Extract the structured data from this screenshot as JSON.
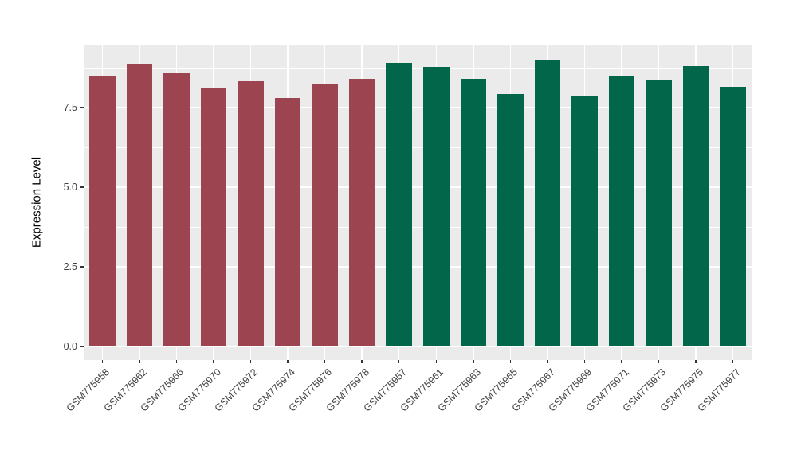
{
  "chart_data": {
    "type": "bar",
    "title": "",
    "xlabel": "",
    "ylabel": "Expression Level",
    "ylim": [
      0,
      9.45
    ],
    "grid": true,
    "legend_position": "none",
    "panel_background": "#EBEBEB",
    "gridline_color": "#ffffff",
    "yticks": [
      {
        "label": "0.0",
        "value": 0.0
      },
      {
        "label": "2.5",
        "value": 2.5
      },
      {
        "label": "5.0",
        "value": 5.0
      },
      {
        "label": "7.5",
        "value": 7.5
      }
    ],
    "minor_gridlines": [
      1.25,
      3.75,
      6.25,
      8.75
    ],
    "group_colors": {
      "group1": "#9D4451",
      "group2": "#02674A"
    },
    "bars": [
      {
        "label": "GSM775958",
        "value": 8.5,
        "group": "group1"
      },
      {
        "label": "GSM775962",
        "value": 8.88,
        "group": "group1"
      },
      {
        "label": "GSM775966",
        "value": 8.58,
        "group": "group1"
      },
      {
        "label": "GSM775970",
        "value": 8.13,
        "group": "group1"
      },
      {
        "label": "GSM775972",
        "value": 8.33,
        "group": "group1"
      },
      {
        "label": "GSM775974",
        "value": 7.8,
        "group": "group1"
      },
      {
        "label": "GSM775976",
        "value": 8.22,
        "group": "group1"
      },
      {
        "label": "GSM775978",
        "value": 8.4,
        "group": "group1"
      },
      {
        "label": "GSM775957",
        "value": 8.9,
        "group": "group2"
      },
      {
        "label": "GSM775961",
        "value": 8.78,
        "group": "group2"
      },
      {
        "label": "GSM775963",
        "value": 8.4,
        "group": "group2"
      },
      {
        "label": "GSM775965",
        "value": 7.93,
        "group": "group2"
      },
      {
        "label": "GSM775967",
        "value": 9.0,
        "group": "group2"
      },
      {
        "label": "GSM775969",
        "value": 7.85,
        "group": "group2"
      },
      {
        "label": "GSM775971",
        "value": 8.48,
        "group": "group2"
      },
      {
        "label": "GSM775973",
        "value": 8.38,
        "group": "group2"
      },
      {
        "label": "GSM775975",
        "value": 8.8,
        "group": "group2"
      },
      {
        "label": "GSM775977",
        "value": 8.15,
        "group": "group2"
      }
    ]
  }
}
